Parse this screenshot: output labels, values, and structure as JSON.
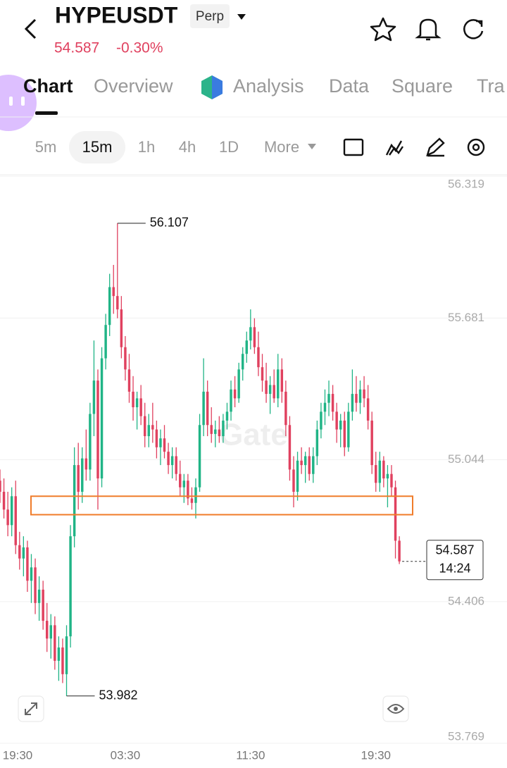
{
  "header": {
    "title": "HYPEUSDT",
    "badge": "Perp",
    "price": 54.587,
    "change": "-0.30%"
  },
  "tabs": [
    "Chart",
    "Overview",
    "Analysis",
    "Data",
    "Square",
    "Tra"
  ],
  "intervals": [
    "5m",
    "15m",
    "1h",
    "4h",
    "1D",
    "More"
  ],
  "chart_data": {
    "type": "candlestick",
    "watermark": "Gate",
    "up_color": "#20b486",
    "down_color": "#e0415f",
    "ylim": [
      53.769,
      56.319
    ],
    "yticks": [
      56.319,
      55.681,
      55.044,
      54.406,
      53.769
    ],
    "xlim": [
      0,
      129.5
    ],
    "xticks": [
      {
        "value": 0,
        "label": "19:30"
      },
      {
        "value": 32,
        "label": "03:30"
      },
      {
        "value": 64,
        "label": "11:30"
      },
      {
        "value": 96,
        "label": "19:30"
      }
    ],
    "countdown": "14:24",
    "zone": [
      54.797,
      54.88
    ],
    "ohlc": [
      [
        54.95,
        55.0,
        54.85,
        54.9
      ],
      [
        54.9,
        54.96,
        54.78,
        54.82
      ],
      [
        54.82,
        54.9,
        54.7,
        54.75
      ],
      [
        54.75,
        54.92,
        54.7,
        54.88
      ],
      [
        54.88,
        54.95,
        54.62,
        54.66
      ],
      [
        54.66,
        54.72,
        54.55,
        54.6
      ],
      [
        54.6,
        54.7,
        54.52,
        54.65
      ],
      [
        54.65,
        54.68,
        54.45,
        54.5
      ],
      [
        54.5,
        54.62,
        54.4,
        54.56
      ],
      [
        54.56,
        54.6,
        54.35,
        54.4
      ],
      [
        54.4,
        54.52,
        54.32,
        54.46
      ],
      [
        54.46,
        54.5,
        54.28,
        54.32
      ],
      [
        54.32,
        54.4,
        54.18,
        54.24
      ],
      [
        54.24,
        54.35,
        54.15,
        54.3
      ],
      [
        54.3,
        54.34,
        54.1,
        54.14
      ],
      [
        54.14,
        54.25,
        54.05,
        54.2
      ],
      [
        54.2,
        54.24,
        54.04,
        54.08
      ],
      [
        54.08,
        54.3,
        53.982,
        54.25
      ],
      [
        54.25,
        54.75,
        54.2,
        54.7
      ],
      [
        54.7,
        55.1,
        54.65,
        55.02
      ],
      [
        55.02,
        55.12,
        54.82,
        54.9
      ],
      [
        54.9,
        55.1,
        54.85,
        55.05
      ],
      [
        55.05,
        55.18,
        54.95,
        55.0
      ],
      [
        55.0,
        55.3,
        54.95,
        55.25
      ],
      [
        55.25,
        55.58,
        55.15,
        55.4
      ],
      [
        55.4,
        55.45,
        54.82,
        54.96
      ],
      [
        54.96,
        55.55,
        54.92,
        55.5
      ],
      [
        55.5,
        55.7,
        55.45,
        55.65
      ],
      [
        55.65,
        55.88,
        55.6,
        55.82
      ],
      [
        55.82,
        55.92,
        55.7,
        55.78
      ],
      [
        55.78,
        56.107,
        55.68,
        55.72
      ],
      [
        55.72,
        55.78,
        55.5,
        55.55
      ],
      [
        55.55,
        55.6,
        55.4,
        55.45
      ],
      [
        55.45,
        55.52,
        55.3,
        55.35
      ],
      [
        55.35,
        55.42,
        55.22,
        55.28
      ],
      [
        55.28,
        55.35,
        55.18,
        55.32
      ],
      [
        55.32,
        55.38,
        55.2,
        55.24
      ],
      [
        55.24,
        55.3,
        55.1,
        55.15
      ],
      [
        55.15,
        55.25,
        55.1,
        55.2
      ],
      [
        55.2,
        55.3,
        55.12,
        55.18
      ],
      [
        55.18,
        55.22,
        55.05,
        55.1
      ],
      [
        55.1,
        55.18,
        55.02,
        55.14
      ],
      [
        55.14,
        55.2,
        55.05,
        55.08
      ],
      [
        55.08,
        55.12,
        54.98,
        55.02
      ],
      [
        55.02,
        55.1,
        54.96,
        55.06
      ],
      [
        55.06,
        55.1,
        54.95,
        54.98
      ],
      [
        54.98,
        55.04,
        54.88,
        54.92
      ],
      [
        54.92,
        54.98,
        54.85,
        54.95
      ],
      [
        54.95,
        54.98,
        54.84,
        54.87
      ],
      [
        54.87,
        54.92,
        54.82,
        54.85
      ],
      [
        54.85,
        54.96,
        54.78,
        54.92
      ],
      [
        54.92,
        55.25,
        54.9,
        55.2
      ],
      [
        55.2,
        55.5,
        55.15,
        55.35
      ],
      [
        55.35,
        55.4,
        55.15,
        55.2
      ],
      [
        55.2,
        55.28,
        55.12,
        55.16
      ],
      [
        55.16,
        55.22,
        55.1,
        55.18
      ],
      [
        55.18,
        55.24,
        55.12,
        55.15
      ],
      [
        55.15,
        55.25,
        55.12,
        55.22
      ],
      [
        55.22,
        55.3,
        55.18,
        55.26
      ],
      [
        55.26,
        55.4,
        55.22,
        55.36
      ],
      [
        55.36,
        55.42,
        55.28,
        55.32
      ],
      [
        55.32,
        55.48,
        55.3,
        55.45
      ],
      [
        55.45,
        55.55,
        55.4,
        55.52
      ],
      [
        55.52,
        55.62,
        55.48,
        55.58
      ],
      [
        55.58,
        55.72,
        55.54,
        55.64
      ],
      [
        55.64,
        55.68,
        55.52,
        55.55
      ],
      [
        55.55,
        55.62,
        55.42,
        55.46
      ],
      [
        55.46,
        55.52,
        55.35,
        55.4
      ],
      [
        55.4,
        55.48,
        55.3,
        55.34
      ],
      [
        55.34,
        55.42,
        55.25,
        55.38
      ],
      [
        55.38,
        55.45,
        55.3,
        55.32
      ],
      [
        55.32,
        55.52,
        55.28,
        55.45
      ],
      [
        55.45,
        55.5,
        55.3,
        55.35
      ],
      [
        55.35,
        55.4,
        55.15,
        55.2
      ],
      [
        55.2,
        55.24,
        54.95,
        55.0
      ],
      [
        55.0,
        55.06,
        54.83,
        54.9
      ],
      [
        54.9,
        55.08,
        54.86,
        55.04
      ],
      [
        55.04,
        55.1,
        54.98,
        55.02
      ],
      [
        55.02,
        55.08,
        54.94,
        55.06
      ],
      [
        55.06,
        55.1,
        54.95,
        54.98
      ],
      [
        54.98,
        55.1,
        54.94,
        55.06
      ],
      [
        55.06,
        55.22,
        55.02,
        55.18
      ],
      [
        55.18,
        55.3,
        55.14,
        55.26
      ],
      [
        55.26,
        55.36,
        55.2,
        55.3
      ],
      [
        55.3,
        55.4,
        55.24,
        55.34
      ],
      [
        55.34,
        55.38,
        55.22,
        55.26
      ],
      [
        55.26,
        55.3,
        55.12,
        55.18
      ],
      [
        55.18,
        55.25,
        55.1,
        55.22
      ],
      [
        55.22,
        55.26,
        55.06,
        55.1
      ],
      [
        55.1,
        55.3,
        55.08,
        55.26
      ],
      [
        55.26,
        55.45,
        55.22,
        55.34
      ],
      [
        55.34,
        55.42,
        55.26,
        55.3
      ],
      [
        55.3,
        55.4,
        55.25,
        55.36
      ],
      [
        55.36,
        55.42,
        55.28,
        55.32
      ],
      [
        55.32,
        55.38,
        55.18,
        55.22
      ],
      [
        55.22,
        55.26,
        54.98,
        55.02
      ],
      [
        55.02,
        55.08,
        54.9,
        54.94
      ],
      [
        54.94,
        55.08,
        54.9,
        55.04
      ],
      [
        55.04,
        55.06,
        54.92,
        54.96
      ],
      [
        54.96,
        55.02,
        54.83,
        54.98
      ],
      [
        54.98,
        55.02,
        54.88,
        54.92
      ],
      [
        54.92,
        54.95,
        54.6,
        54.68
      ],
      [
        54.68,
        54.7,
        54.575,
        54.587
      ]
    ]
  }
}
